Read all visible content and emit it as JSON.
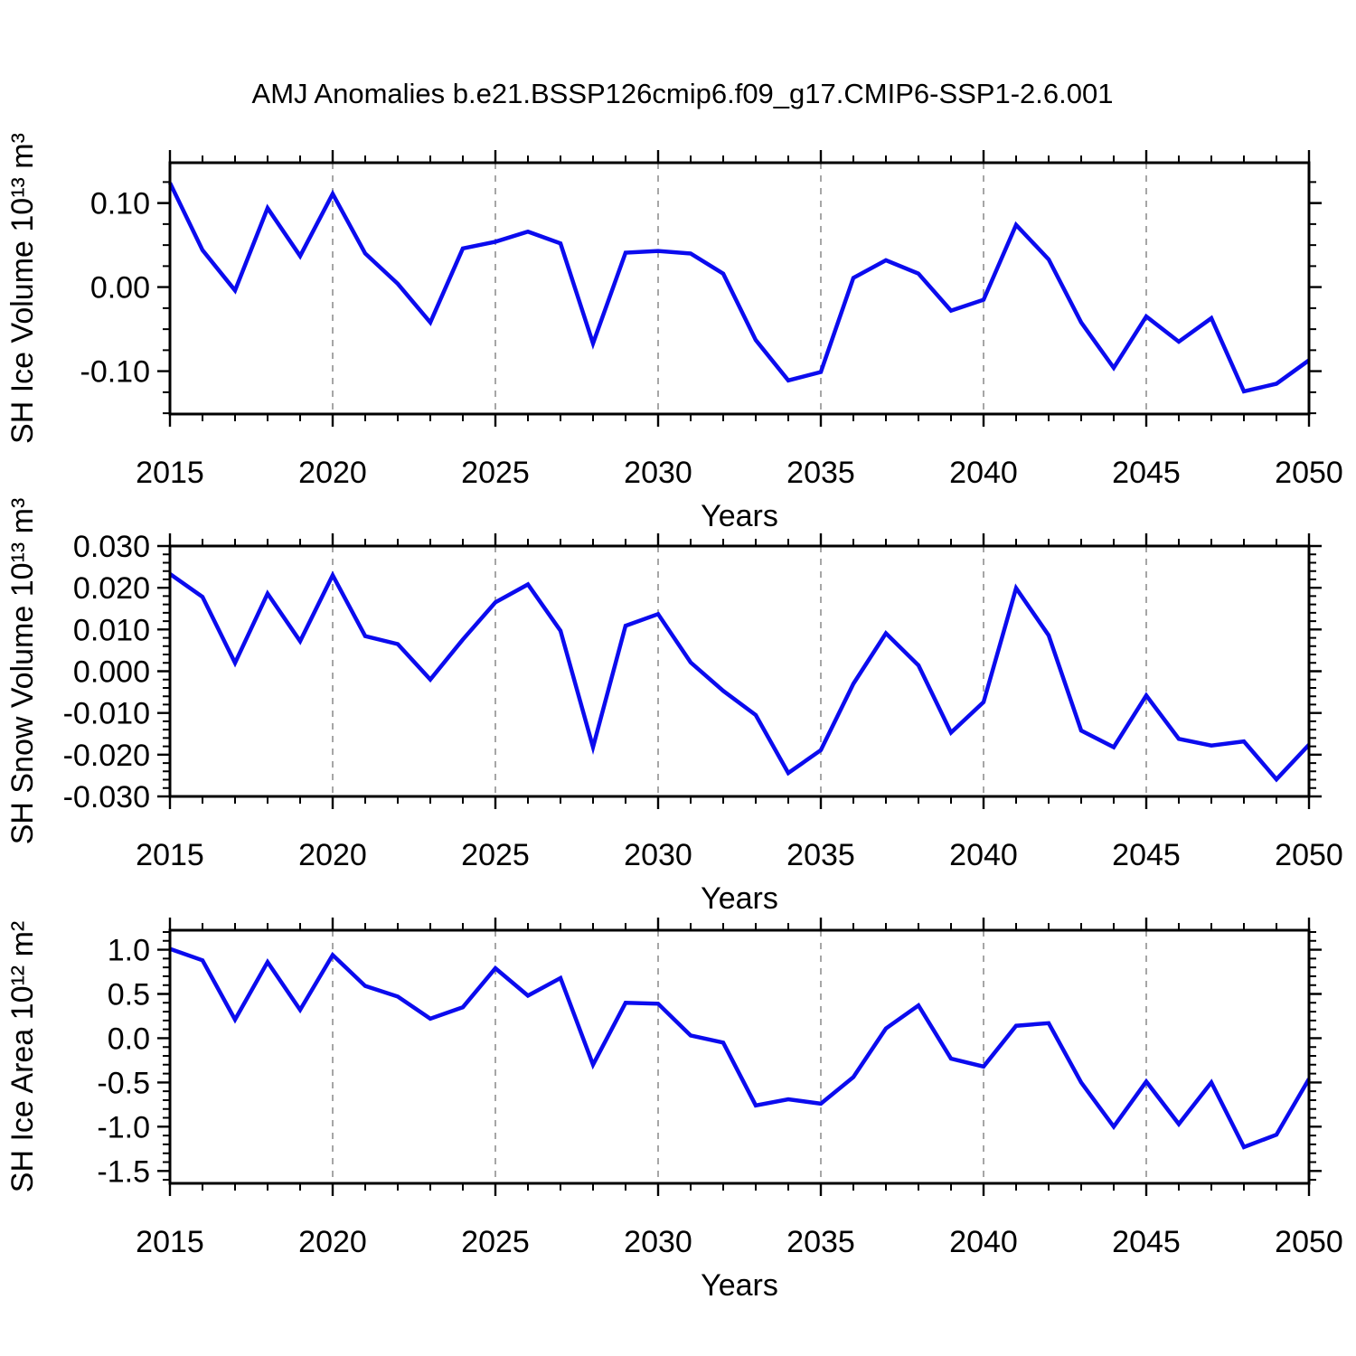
{
  "figure": {
    "title": "AMJ Anomalies b.e21.BSSP126cmip6.f09_g17.CMIP6-SSP1-2.6.001",
    "background": "#ffffff",
    "frame_color": "#000000",
    "line_color": "#0b0bee",
    "grid_color": "#a6a6a6"
  },
  "chart_data": [
    {
      "type": "line",
      "title": "AMJ Anomalies b.e21.BSSP126cmip6.f09_g17.CMIP6-SSP1-2.6.001",
      "name": "sh-ice-volume",
      "xlabel": "Years",
      "ylabel": "SH Ice Volume 10¹³ m³",
      "ylim": [
        -0.151,
        0.148
      ],
      "yticks_major": [
        -0.1,
        0.0,
        0.1
      ],
      "ytick_labels": [
        "-0.10",
        "0.00",
        "0.10"
      ],
      "yminor_step": 0.025,
      "xlim": [
        2015,
        2050
      ],
      "xticks_major": [
        2015,
        2020,
        2025,
        2030,
        2035,
        2040,
        2045,
        2050
      ],
      "xtick_labels": [
        "2015",
        "2020",
        "2025",
        "2030",
        "2035",
        "2040",
        "2045",
        "2050"
      ],
      "xminor_step": 1,
      "grid_years": [
        2020,
        2025,
        2030,
        2035,
        2040,
        2045
      ],
      "grid": "vertical-dashed",
      "legend": "none",
      "x": [
        2015,
        2016,
        2017,
        2018,
        2019,
        2020,
        2021,
        2022,
        2023,
        2024,
        2025,
        2026,
        2027,
        2028,
        2029,
        2030,
        2031,
        2032,
        2033,
        2034,
        2035,
        2036,
        2037,
        2038,
        2039,
        2040,
        2041,
        2042,
        2043,
        2044,
        2045,
        2046,
        2047,
        2048,
        2049,
        2050
      ],
      "values": [
        0.124,
        0.044,
        -0.004,
        0.094,
        0.037,
        0.111,
        0.04,
        0.004,
        -0.042,
        0.046,
        0.054,
        0.066,
        0.052,
        -0.067,
        0.041,
        0.043,
        0.04,
        0.016,
        -0.063,
        -0.111,
        -0.101,
        0.011,
        0.032,
        0.016,
        -0.028,
        -0.015,
        0.074,
        0.033,
        -0.042,
        -0.096,
        -0.035,
        -0.065,
        -0.037,
        -0.124,
        -0.115,
        -0.087
      ]
    },
    {
      "type": "line",
      "title": "",
      "name": "sh-snow-volume",
      "xlabel": "Years",
      "ylabel": "SH Snow Volume 10¹³ m³",
      "ylim": [
        -0.03,
        0.03
      ],
      "yticks_major": [
        -0.03,
        -0.02,
        -0.01,
        0.0,
        0.01,
        0.02,
        0.03
      ],
      "ytick_labels": [
        "-0.030",
        "-0.020",
        "-0.010",
        "0.000",
        "0.010",
        "0.020",
        "0.030"
      ],
      "yminor_step": 0.002,
      "xlim": [
        2015,
        2050
      ],
      "xticks_major": [
        2015,
        2020,
        2025,
        2030,
        2035,
        2040,
        2045,
        2050
      ],
      "xtick_labels": [
        "2015",
        "2020",
        "2025",
        "2030",
        "2035",
        "2040",
        "2045",
        "2050"
      ],
      "xminor_step": 1,
      "grid_years": [
        2020,
        2025,
        2030,
        2035,
        2040,
        2045
      ],
      "grid": "vertical-dashed",
      "legend": "none",
      "x": [
        2015,
        2016,
        2017,
        2018,
        2019,
        2020,
        2021,
        2022,
        2023,
        2024,
        2025,
        2026,
        2027,
        2028,
        2029,
        2030,
        2031,
        2032,
        2033,
        2034,
        2035,
        2036,
        2037,
        2038,
        2039,
        2040,
        2041,
        2042,
        2043,
        2044,
        2045,
        2046,
        2047,
        2048,
        2049,
        2050
      ],
      "values": [
        0.0233,
        0.0178,
        0.002,
        0.0186,
        0.0072,
        0.023,
        0.0084,
        0.0065,
        -0.002,
        0.0076,
        0.0165,
        0.0208,
        0.0097,
        -0.0182,
        0.0109,
        0.0137,
        0.0021,
        -0.0047,
        -0.0105,
        -0.0244,
        -0.0189,
        -0.003,
        0.0091,
        0.0014,
        -0.0147,
        -0.0074,
        0.0199,
        0.0086,
        -0.0142,
        -0.0182,
        -0.0058,
        -0.0162,
        -0.0178,
        -0.0168,
        -0.0259,
        -0.0176
      ]
    },
    {
      "type": "line",
      "title": "",
      "name": "sh-ice-area",
      "xlabel": "Years",
      "ylabel": "SH Ice Area 10¹² m²",
      "ylim": [
        -1.64,
        1.22
      ],
      "yticks_major": [
        -1.5,
        -1.0,
        -0.5,
        0.0,
        0.5,
        1.0
      ],
      "ytick_labels": [
        "-1.5",
        "-1.0",
        "-0.5",
        "0.0",
        "0.5",
        "1.0"
      ],
      "yminor_step": 0.1,
      "xlim": [
        2015,
        2050
      ],
      "xticks_major": [
        2015,
        2020,
        2025,
        2030,
        2035,
        2040,
        2045,
        2050
      ],
      "xtick_labels": [
        "2015",
        "2020",
        "2025",
        "2030",
        "2035",
        "2040",
        "2045",
        "2050"
      ],
      "xminor_step": 1,
      "grid_years": [
        2020,
        2025,
        2030,
        2035,
        2040,
        2045
      ],
      "grid": "vertical-dashed",
      "legend": "none",
      "x": [
        2015,
        2016,
        2017,
        2018,
        2019,
        2020,
        2021,
        2022,
        2023,
        2024,
        2025,
        2026,
        2027,
        2028,
        2029,
        2030,
        2031,
        2032,
        2033,
        2034,
        2035,
        2036,
        2037,
        2038,
        2039,
        2040,
        2041,
        2042,
        2043,
        2044,
        2045,
        2046,
        2047,
        2048,
        2049,
        2050
      ],
      "values": [
        1.01,
        0.88,
        0.21,
        0.86,
        0.32,
        0.94,
        0.59,
        0.47,
        0.22,
        0.35,
        0.79,
        0.48,
        0.68,
        -0.3,
        0.4,
        0.39,
        0.03,
        -0.05,
        -0.76,
        -0.69,
        -0.74,
        -0.44,
        0.11,
        0.37,
        -0.23,
        -0.32,
        0.14,
        0.17,
        -0.5,
        -1.0,
        -0.49,
        -0.97,
        -0.5,
        -1.23,
        -1.09,
        -0.46
      ]
    }
  ]
}
